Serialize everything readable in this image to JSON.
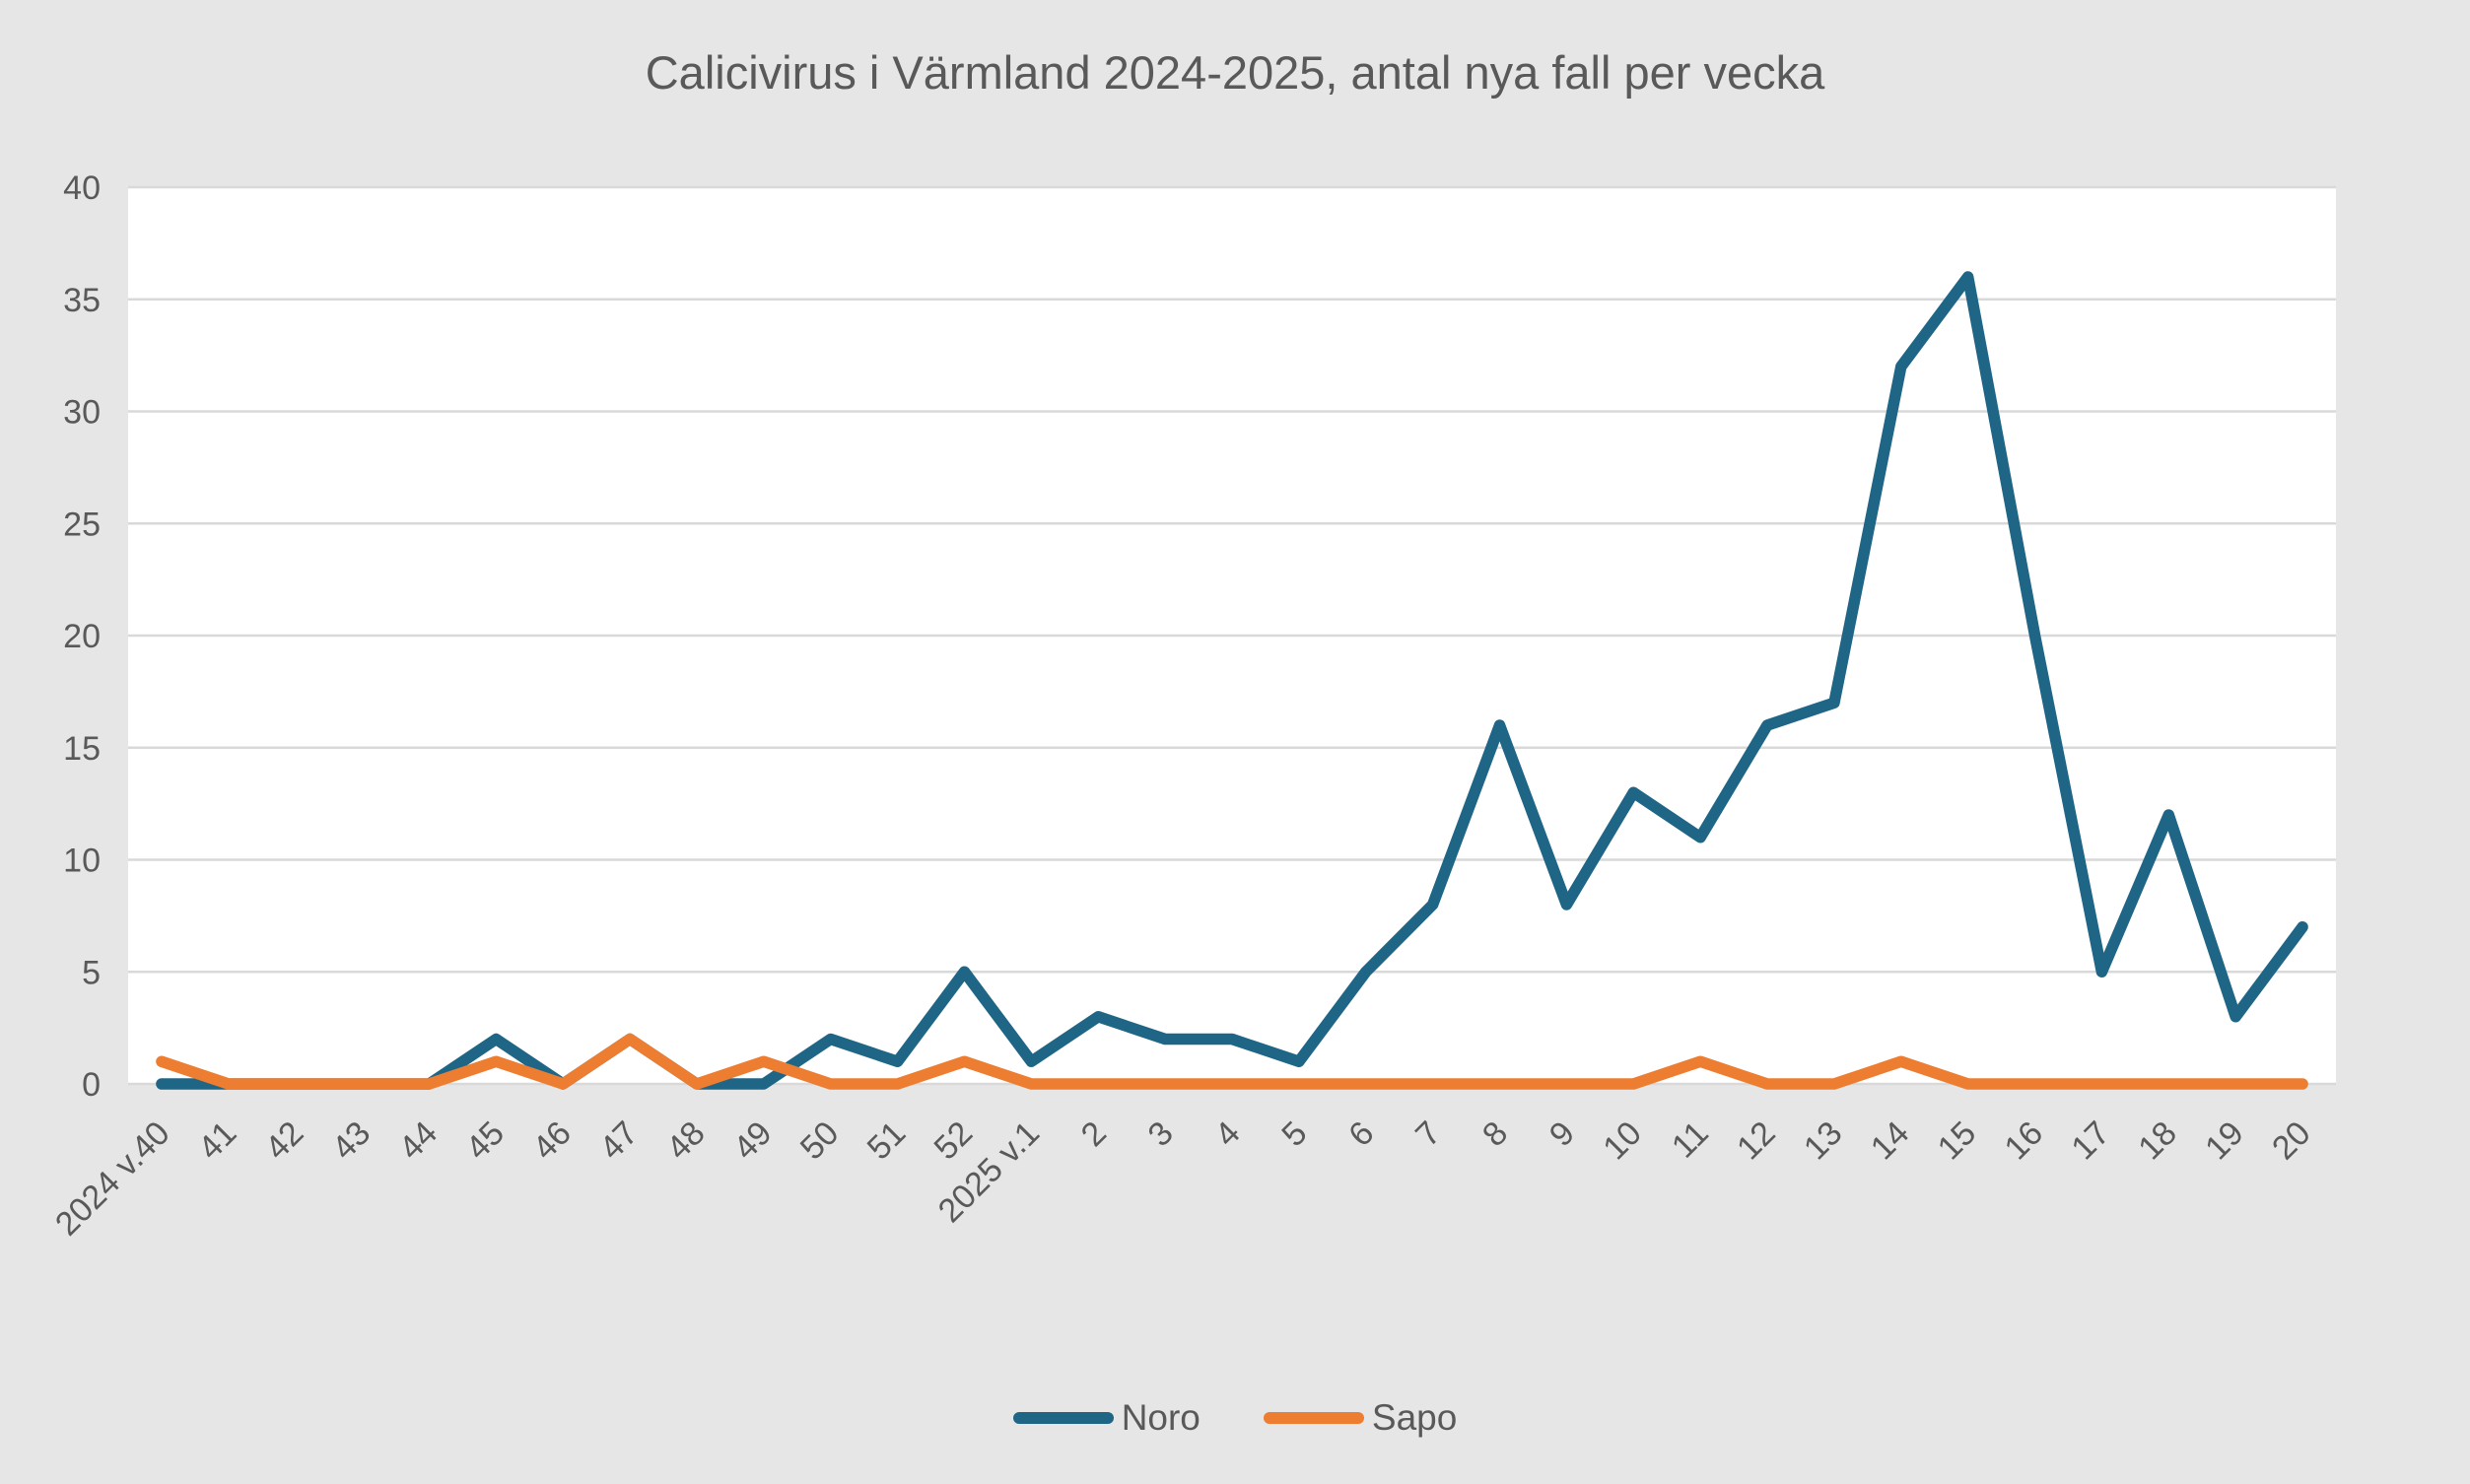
{
  "chart_data": {
    "type": "line",
    "title": "Calicivirus i Värmland 2024-2025, antal nya fall per vecka",
    "categories": [
      "2024 v.40",
      "41",
      "42",
      "43",
      "44",
      "45",
      "46",
      "47",
      "48",
      "49",
      "50",
      "51",
      "52",
      "2025 v.1",
      "2",
      "3",
      "4",
      "5",
      "6",
      "7",
      "8",
      "9",
      "10",
      "11",
      "12",
      "13",
      "14",
      "15",
      "16",
      "17",
      "18",
      "19",
      "20"
    ],
    "series": [
      {
        "name": "Noro",
        "color": "#1f6586",
        "values": [
          0,
          0,
          0,
          0,
          0,
          2,
          0,
          2,
          0,
          0,
          2,
          1,
          5,
          1,
          3,
          2,
          2,
          1,
          5,
          8,
          16,
          8,
          13,
          11,
          16,
          17,
          32,
          36,
          20,
          5,
          12,
          3,
          7
        ]
      },
      {
        "name": "Sapo",
        "color": "#ed7d31",
        "values": [
          1,
          0,
          0,
          0,
          0,
          1,
          0,
          2,
          0,
          1,
          0,
          0,
          1,
          0,
          0,
          0,
          0,
          0,
          0,
          0,
          0,
          0,
          0,
          1,
          0,
          0,
          1,
          0,
          0,
          0,
          0,
          0,
          0
        ]
      }
    ],
    "y_axis": {
      "min": 0,
      "max": 40,
      "step": 5,
      "tick_labels": [
        "40",
        "35",
        "30",
        "25",
        "20",
        "15",
        "10",
        "5",
        "0"
      ]
    },
    "x_axis": {
      "label_rotation_deg": 45
    },
    "legend_position": "bottom",
    "grid": true,
    "colors": {
      "background": "#e7e6e6",
      "plot_background": "#ffffff",
      "gridline": "#d9d9d9",
      "text": "#595959"
    }
  }
}
